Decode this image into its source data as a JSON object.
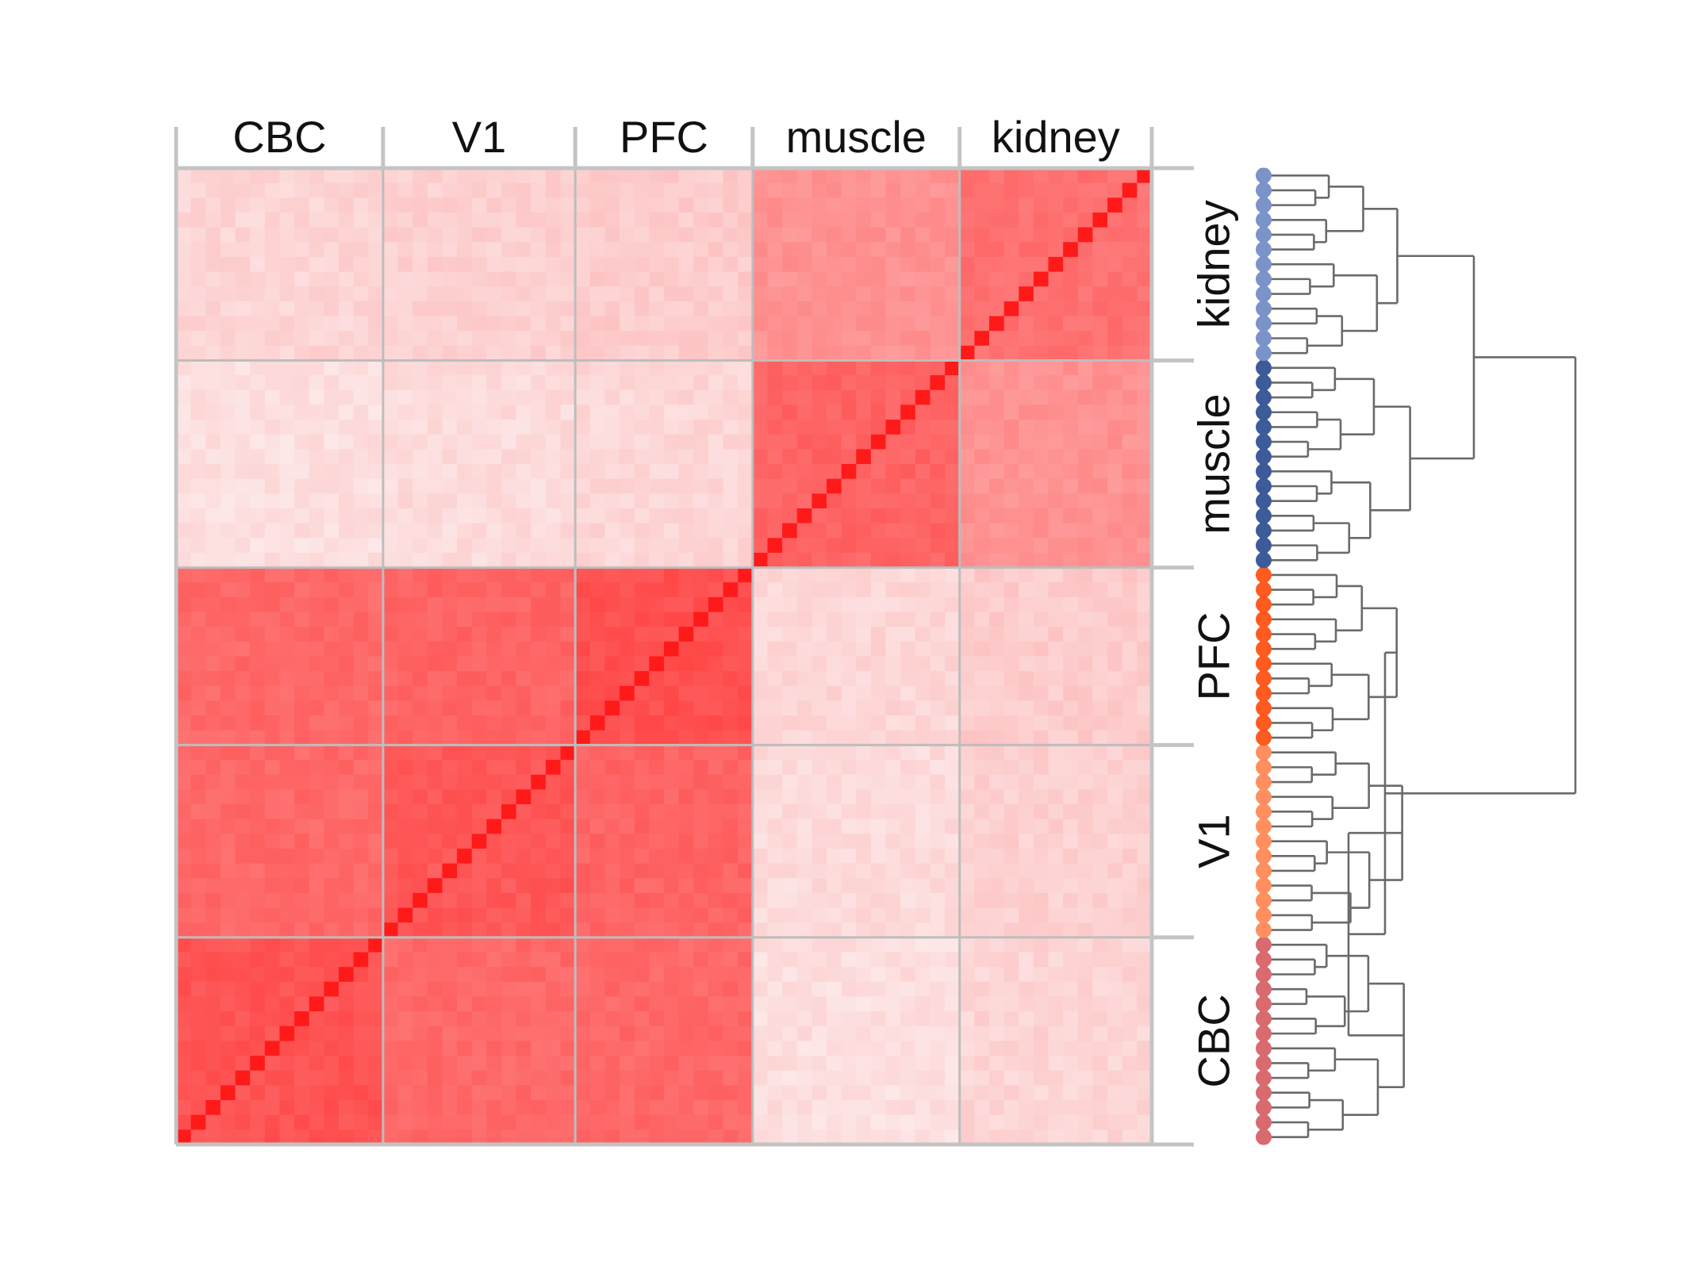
{
  "chart_data": {
    "type": "heatmap",
    "groups": [
      "CBC",
      "V1",
      "PFC",
      "muscle",
      "kidney"
    ],
    "group_sample_counts": [
      14,
      13,
      12,
      14,
      13
    ],
    "column_labels": [
      "CBC",
      "V1",
      "PFC",
      "muscle",
      "kidney"
    ],
    "row_labels_top_to_bottom": [
      "kidney",
      "muscle",
      "PFC",
      "V1",
      "CBC"
    ],
    "diagonal_direction": "bottom-left to top-right",
    "color_scale": {
      "low": "#fde9e9",
      "high": "#ff1a1a"
    },
    "block_similarity": [
      [
        0.72,
        0.62,
        0.62,
        0.05,
        0.1
      ],
      [
        0.62,
        0.7,
        0.64,
        0.07,
        0.12
      ],
      [
        0.62,
        0.64,
        0.74,
        0.09,
        0.14
      ],
      [
        0.05,
        0.07,
        0.09,
        0.64,
        0.42
      ],
      [
        0.1,
        0.12,
        0.14,
        0.42,
        0.58
      ]
    ],
    "diagonal_value": 1.0,
    "dendrogram": {
      "side": "right",
      "leaf_colors": {
        "kidney": "#7b93c9",
        "muscle": "#3d5a9a",
        "PFC": "#ff5a1f",
        "V1": "#ff8f5e",
        "CBC": "#d96a6f"
      },
      "top_split": [
        [
          "kidney",
          "muscle"
        ],
        [
          "PFC",
          "V1",
          "CBC"
        ]
      ]
    }
  }
}
